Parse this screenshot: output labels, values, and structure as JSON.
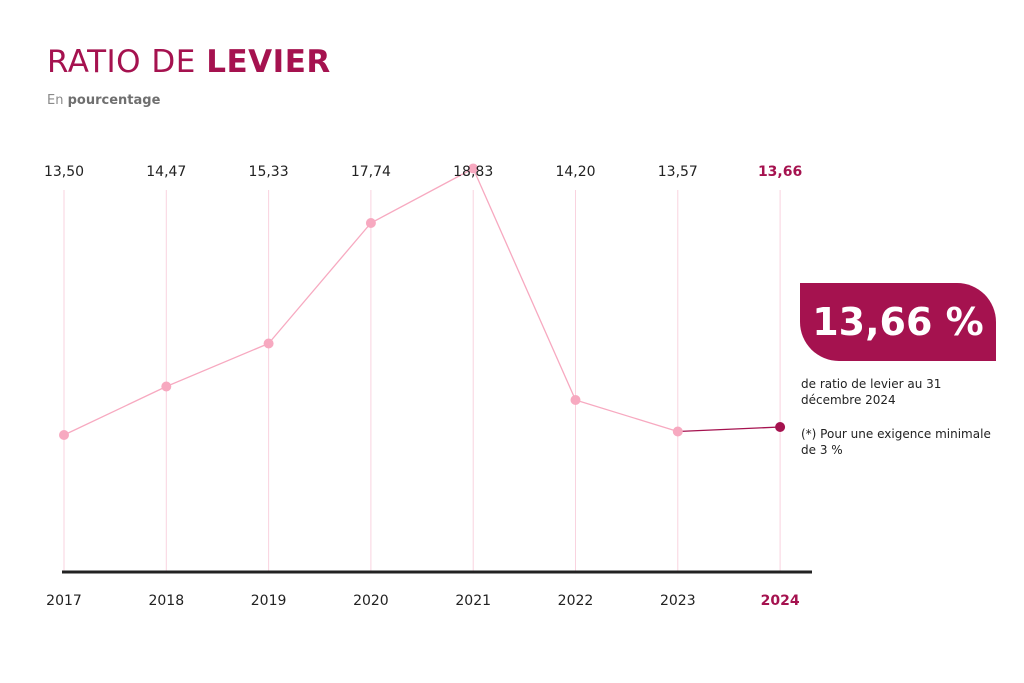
{
  "header": {
    "title_regular": "RATIO DE ",
    "title_bold": "LEVIER",
    "subtitle_regular": "En ",
    "subtitle_bold": "pourcentage"
  },
  "colors": {
    "accent": "#a5124f",
    "line": "#f7a9c0",
    "gridline": "#f9d3df",
    "axis": "#222222"
  },
  "chart_data": {
    "type": "line",
    "title": "RATIO DE LEVIER",
    "subtitle": "En pourcentage",
    "x": [
      "2017",
      "2018",
      "2019",
      "2020",
      "2021",
      "2022",
      "2023",
      "2024"
    ],
    "value_labels": [
      "13,50",
      "14,47",
      "15,33",
      "17,74",
      "18,83",
      "14,20",
      "13,57",
      "13,66"
    ],
    "values": [
      13.5,
      14.47,
      15.33,
      17.74,
      18.83,
      14.2,
      13.57,
      13.66
    ],
    "highlight": "2024",
    "ylim": [
      11.0,
      20.0
    ],
    "grid": "vertical"
  },
  "callout": {
    "value": "13,66 %",
    "description": "de ratio de levier au 31 décembre 2024",
    "note": "(*) Pour une exigence minimale de 3 %"
  }
}
